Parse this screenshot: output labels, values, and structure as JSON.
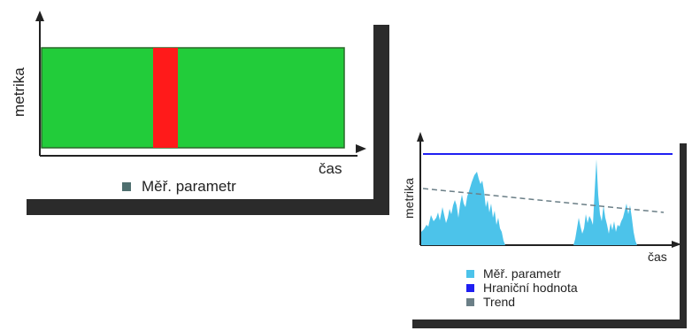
{
  "colors": {
    "signal_green": "#22cc3a",
    "signal_red": "#ff1a1a",
    "series_cyan": "#4cc3ea",
    "threshold_blue": "#1f1ff2",
    "trend_gray": "#6b7f87",
    "axis": "#222222",
    "shadow": "#2b2b2b",
    "swatch_gray": "#4f6f6f"
  },
  "left_diagram": {
    "y_label": "metrika",
    "x_label": "čas",
    "legend": [
      {
        "label": "Měř. parametr",
        "icon": "square-swatch-icon",
        "color": "#4f6f6f"
      }
    ]
  },
  "right_diagram": {
    "y_label": "metrika",
    "x_label": "čas",
    "legend": [
      {
        "label": "Měř. parametr",
        "icon": "square-swatch-icon",
        "color": "#4cc3ea"
      },
      {
        "label": "Hraniční hodnota",
        "icon": "square-swatch-icon",
        "color": "#1f1ff2"
      },
      {
        "label": "Trend",
        "icon": "square-swatch-icon",
        "color": "#6b7f87"
      }
    ]
  }
}
